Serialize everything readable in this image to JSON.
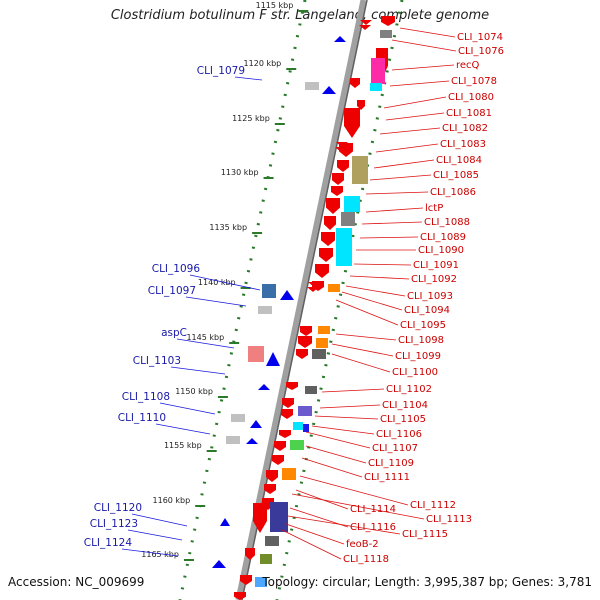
{
  "title": "Clostridium botulinum F str. Langeland, complete genome",
  "accession": "Accession: NC_009699",
  "topology": "Topology: circular; Length: 3,995,387 bp; Genes: 3,781",
  "colors": {
    "backbone": "#a0a0a0",
    "backbone_dark": "#606060",
    "ticks": "#2a7a2a",
    "forward_gene": "#0000ee",
    "reverse_gene": "#ee0000",
    "left_label": "#1a1aa8",
    "right_label": "#cc0000",
    "leader_left": "#1a1ae0",
    "leader_right": "#dd1010"
  },
  "scale_ticks": [
    {
      "label": "1115 kbp"
    },
    {
      "label": "1120 kbp"
    },
    {
      "label": "1125 kbp"
    },
    {
      "label": "1130 kbp"
    },
    {
      "label": "1135 kbp"
    },
    {
      "label": "1140 kbp"
    },
    {
      "label": "1145 kbp"
    },
    {
      "label": "1150 kbp"
    },
    {
      "label": "1155 kbp"
    },
    {
      "label": "1160 kbp"
    },
    {
      "label": "1165 kbp"
    }
  ],
  "left_labels": [
    {
      "text": "CLI_1079"
    },
    {
      "text": "CLI_1096"
    },
    {
      "text": "CLI_1097"
    },
    {
      "text": "aspC"
    },
    {
      "text": "CLI_1103"
    },
    {
      "text": "CLI_1108"
    },
    {
      "text": "CLI_1110"
    },
    {
      "text": "CLI_1120"
    },
    {
      "text": "CLI_1123"
    },
    {
      "text": "CLI_1124"
    }
  ],
  "right_labels": [
    {
      "text": "CLI_1074"
    },
    {
      "text": "CLI_1076"
    },
    {
      "text": "recQ"
    },
    {
      "text": "CLI_1078"
    },
    {
      "text": "CLI_1080"
    },
    {
      "text": "CLI_1081"
    },
    {
      "text": "CLI_1082"
    },
    {
      "text": "CLI_1083"
    },
    {
      "text": "CLI_1084"
    },
    {
      "text": "CLI_1085"
    },
    {
      "text": "CLI_1086"
    },
    {
      "text": "lctP"
    },
    {
      "text": "CLI_1088"
    },
    {
      "text": "CLI_1089"
    },
    {
      "text": "CLI_1090"
    },
    {
      "text": "CLI_1091"
    },
    {
      "text": "CLI_1092"
    },
    {
      "text": "CLI_1093"
    },
    {
      "text": "CLI_1094"
    },
    {
      "text": "CLI_1095"
    },
    {
      "text": "CLI_1098"
    },
    {
      "text": "CLI_1099"
    },
    {
      "text": "CLI_1100"
    },
    {
      "text": "CLI_1102"
    },
    {
      "text": "CLI_1104"
    },
    {
      "text": "CLI_1105"
    },
    {
      "text": "CLI_1106"
    },
    {
      "text": "CLI_1107"
    },
    {
      "text": "CLI_1109"
    },
    {
      "text": "CLI_1111"
    },
    {
      "text": "CLI_1112"
    },
    {
      "text": "CLI_1114"
    },
    {
      "text": "CLI_1113"
    },
    {
      "text": "CLI_1116"
    },
    {
      "text": "CLI_1115"
    },
    {
      "text": "feoB-2"
    },
    {
      "text": "CLI_1118"
    }
  ]
}
